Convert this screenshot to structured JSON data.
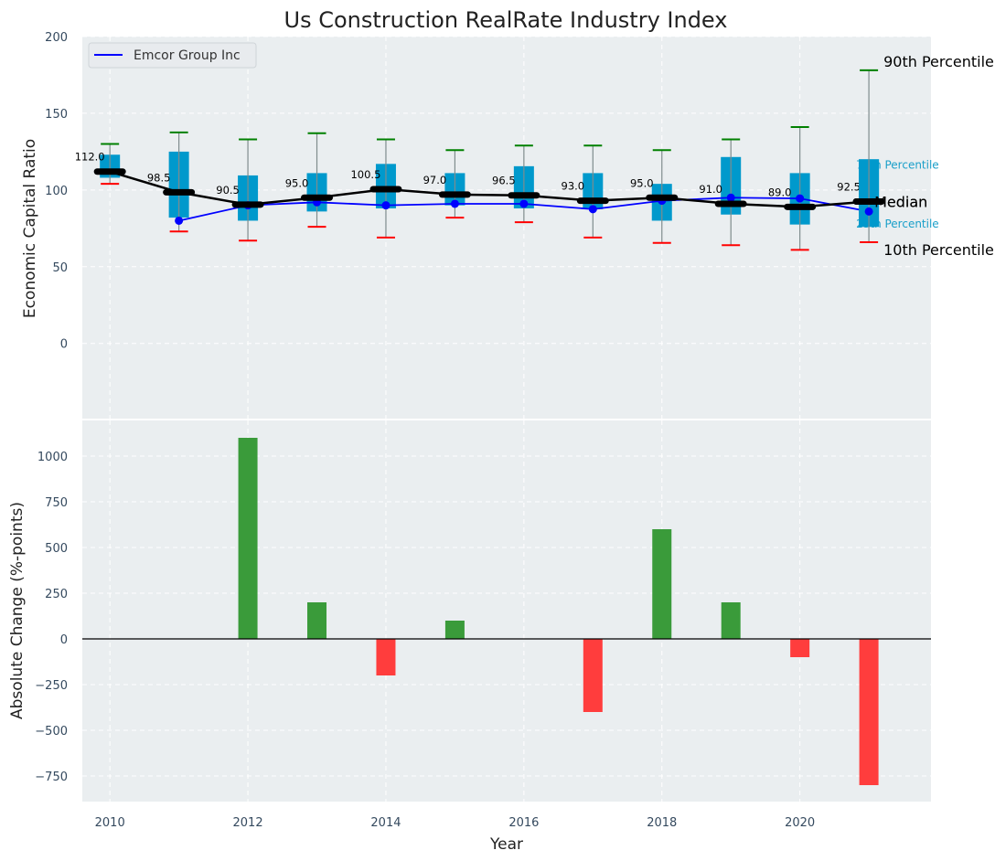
{
  "chart_data": [
    {
      "type": "box",
      "title": "Us Construction RealRate Industry Index",
      "xlabel": "",
      "ylabel": "Economic Capital Ratio",
      "ylim": [
        -49,
        200
      ],
      "yticks": [
        0,
        50,
        100,
        150,
        200
      ],
      "xlim": [
        2009.6,
        2021.9
      ],
      "grid": true,
      "legend": {
        "position": "top-left",
        "entries": [
          {
            "label": "Emcor Group Inc",
            "color": "#0000ff"
          }
        ]
      },
      "x": [
        2010,
        2011,
        2012,
        2013,
        2014,
        2015,
        2016,
        2017,
        2018,
        2019,
        2020,
        2021
      ],
      "p90": [
        130,
        137.5,
        133,
        137,
        133,
        126,
        129,
        129,
        126,
        133,
        141,
        178
      ],
      "p75": [
        123,
        125,
        109.5,
        111,
        117,
        111,
        115.5,
        111,
        104,
        121.5,
        111,
        120
      ],
      "median": [
        112.0,
        98.5,
        90.5,
        95.0,
        100.5,
        97.0,
        96.5,
        93.0,
        95.0,
        91.0,
        89.0,
        92.5
      ],
      "median_labels": [
        "112.0",
        "98.5",
        "90.5",
        "95.0",
        "100.5",
        "97.0",
        "96.5",
        "93.0",
        "95.0",
        "91.0",
        "89.0",
        "92.5"
      ],
      "p25": [
        108,
        82,
        80,
        86,
        88,
        90,
        88,
        87.5,
        80,
        84,
        77.5,
        76
      ],
      "p10": [
        104,
        73,
        67,
        76,
        69,
        82,
        79,
        69,
        65.5,
        64,
        61,
        66
      ],
      "series": [
        {
          "name": "Emcor Group Inc",
          "x": [
            2011,
            2012,
            2013,
            2014,
            2015,
            2016,
            2017,
            2018,
            2019,
            2020,
            2021
          ],
          "values": [
            80,
            90,
            92,
            90,
            91,
            91,
            87.5,
            93,
            95,
            94.5,
            86
          ]
        }
      ],
      "annotations": {
        "p90": "90th Percentile",
        "p75": "75th Percentile",
        "median": "Median",
        "p25": "25th Percentile",
        "p10": "10th Percentile"
      },
      "colors": {
        "box": "#0099cc",
        "median": "#000000",
        "p90": "#008000",
        "p10": "#ff0000",
        "company": "#0000ff",
        "annot_small": "#1a9fc9"
      }
    },
    {
      "type": "bar",
      "title": "",
      "xlabel": "Year",
      "ylabel": "Absolute Change (%-points)",
      "ylim": [
        -890,
        1195
      ],
      "yticks": [
        -750,
        -500,
        -250,
        0,
        250,
        500,
        750,
        1000
      ],
      "ytick_labels": [
        "−750",
        "−500",
        "−250",
        "0",
        "250",
        "500",
        "750",
        "1000"
      ],
      "xticks": [
        2010,
        2012,
        2014,
        2016,
        2018,
        2020
      ],
      "xtick_labels": [
        "2010",
        "2012",
        "2014",
        "2016",
        "2018",
        "2020"
      ],
      "grid": true,
      "categories": [
        2012,
        2013,
        2014,
        2015,
        2017,
        2018,
        2019,
        2020,
        2021
      ],
      "values": [
        1100,
        200,
        -200,
        100,
        -400,
        600,
        200,
        -100,
        -800
      ],
      "colors": {
        "positive": "#3a9b3a",
        "negative": "#ff3d3d"
      }
    }
  ]
}
